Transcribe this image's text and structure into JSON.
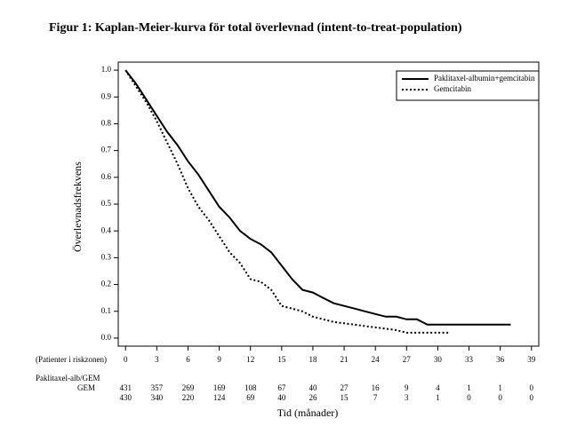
{
  "chart_data": {
    "type": "line",
    "title": "Figur 1: Kaplan-Meier-kurva för total överlevnad (intent-to-treat-population)",
    "y_label": "Överlevnadsfrekvens",
    "x_label": "Tid (månader)",
    "legend": "upper right",
    "xlim": [
      -0.7,
      39.7
    ],
    "ylim": [
      -0.03,
      1.03
    ],
    "xticks": [
      0,
      3,
      6,
      9,
      12,
      15,
      18,
      21,
      24,
      27,
      30,
      33,
      36,
      39
    ],
    "yticks": [
      {
        "value": 1,
        "label": "1.0"
      },
      0.9,
      0.8,
      0.7,
      0.6,
      0.5,
      0.4,
      0.3,
      0.2,
      0.1,
      {
        "value": 0,
        "label": "0.0"
      }
    ],
    "series": [
      {
        "name": "Paklitaxel-albumin+gemcitabin",
        "color": "#000000",
        "dash": "solid",
        "x": [
          0,
          1,
          2,
          3,
          4,
          5,
          6,
          7,
          8,
          9,
          10,
          11,
          12,
          13,
          14,
          15,
          16,
          17,
          18,
          19,
          20,
          21,
          22,
          23,
          24,
          25,
          26,
          27,
          28,
          29,
          30,
          33,
          37
        ],
        "values": [
          1.0,
          0.95,
          0.89,
          0.83,
          0.77,
          0.72,
          0.66,
          0.61,
          0.55,
          0.49,
          0.45,
          0.4,
          0.37,
          0.35,
          0.32,
          0.27,
          0.22,
          0.18,
          0.17,
          0.15,
          0.13,
          0.12,
          0.11,
          0.1,
          0.09,
          0.08,
          0.08,
          0.07,
          0.07,
          0.05,
          0.05,
          0.05,
          0.05
        ]
      },
      {
        "name": "Gemcitabin",
        "color": "#000000",
        "dash": "dotted",
        "x": [
          0,
          1,
          2,
          3,
          4,
          5,
          6,
          7,
          8,
          9,
          10,
          11,
          12,
          13,
          14,
          15,
          16,
          17,
          18,
          19,
          20,
          21,
          22,
          23,
          24,
          25,
          26,
          27,
          28,
          31
        ],
        "values": [
          1.0,
          0.94,
          0.88,
          0.81,
          0.73,
          0.65,
          0.56,
          0.49,
          0.44,
          0.38,
          0.32,
          0.28,
          0.22,
          0.21,
          0.18,
          0.12,
          0.11,
          0.1,
          0.08,
          0.07,
          0.06,
          0.055,
          0.05,
          0.045,
          0.04,
          0.035,
          0.03,
          0.02,
          0.02,
          0.02
        ]
      }
    ],
    "risk_table": {
      "label": "(Patienter i riskzonen)",
      "rows": [
        {
          "name": "Paklitaxel-alb/GEM",
          "values": [
            431,
            357,
            269,
            169,
            108,
            67,
            40,
            27,
            16,
            9,
            4,
            1,
            1,
            0
          ]
        },
        {
          "name": "GEM",
          "values": [
            430,
            340,
            220,
            124,
            69,
            40,
            26,
            15,
            7,
            3,
            1,
            0,
            0,
            0
          ]
        }
      ]
    }
  }
}
